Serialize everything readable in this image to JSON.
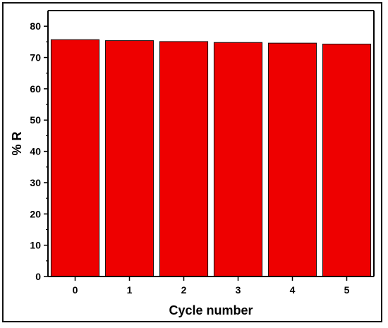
{
  "chart_data": {
    "type": "bar",
    "title": "",
    "xlabel": "Cycle number",
    "ylabel": "% R",
    "categories": [
      "0",
      "1",
      "2",
      "3",
      "4",
      "5"
    ],
    "values": [
      75.7,
      75.4,
      75.1,
      74.8,
      74.6,
      74.3
    ],
    "ylim": [
      0,
      85
    ],
    "yticks": [
      0,
      10,
      20,
      30,
      40,
      50,
      60,
      70,
      80
    ],
    "grid": false,
    "legend": "none",
    "colors": {
      "bar_fill": "#ee0000",
      "bar_stroke": "#111111",
      "axis": "#000000",
      "frame": "#111111"
    }
  }
}
